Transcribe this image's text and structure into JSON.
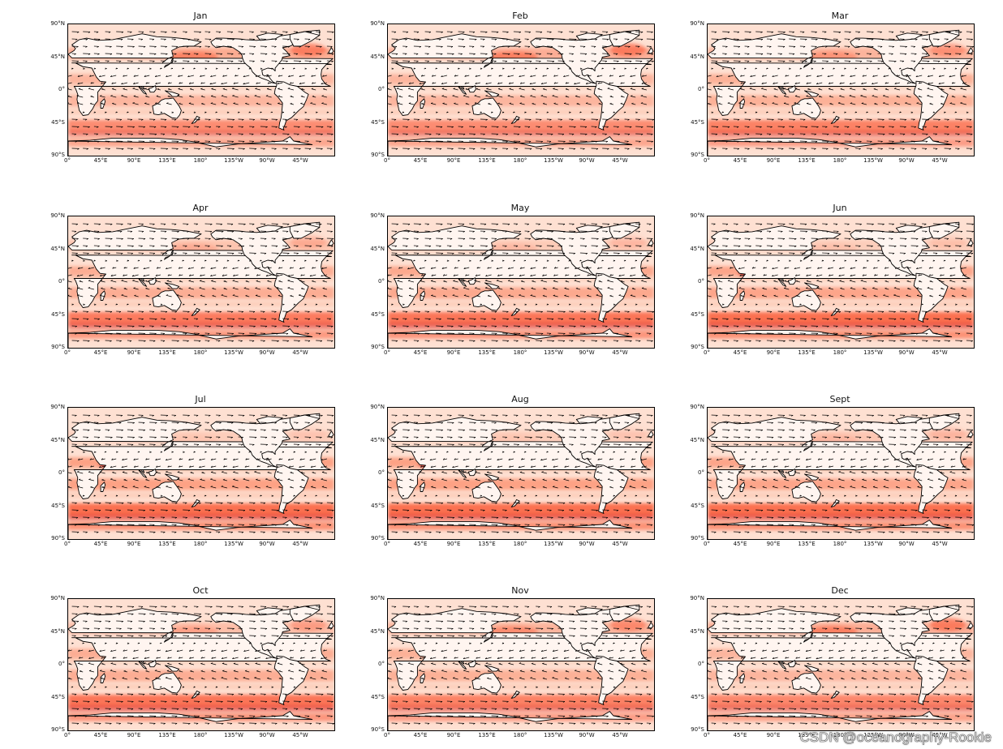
{
  "figure": {
    "panels": [
      "Jan",
      "Feb",
      "Mar",
      "Apr",
      "May",
      "Jun",
      "Jul",
      "Aug",
      "Sept",
      "Oct",
      "Nov",
      "Dec"
    ],
    "lat_ticks": [
      "90°N",
      "45°N",
      "0°",
      "45°S",
      "90°S"
    ],
    "lon_ticks": [
      "0°",
      "45°E",
      "90°E",
      "135°E",
      "180°",
      "135°W",
      "90°W",
      "45°W"
    ],
    "colormap": [
      "#fff5f0",
      "#fee0d2",
      "#fcbba1",
      "#fc9272",
      "#fb6a4a",
      "#de2d26"
    ],
    "coastline_color": "#000000",
    "vector_color": "#000000"
  },
  "watermark": "CSDN @oceanography-Rookie"
}
